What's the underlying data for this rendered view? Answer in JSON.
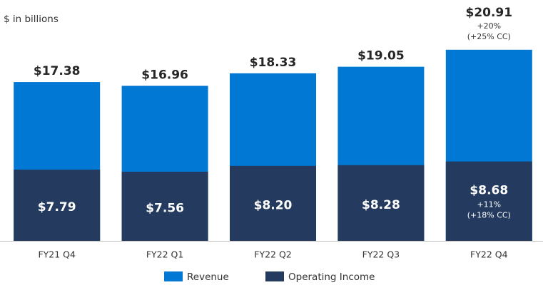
{
  "chart_data": {
    "type": "bar",
    "subtitle": "$ in billions",
    "categories": [
      "FY21 Q4",
      "FY22 Q1",
      "FY22 Q2",
      "FY22 Q3",
      "FY22 Q4"
    ],
    "series": [
      {
        "name": "Revenue",
        "color": "#0078d4",
        "values": [
          17.38,
          16.96,
          18.33,
          19.05,
          20.91
        ],
        "value_labels": [
          "$17.38",
          "$16.96",
          "$18.33",
          "$19.05",
          "$20.91"
        ],
        "notes": [
          null,
          null,
          null,
          null,
          [
            "+20%",
            "(+25% CC)"
          ]
        ]
      },
      {
        "name": "Operating Income",
        "color": "#243a5e",
        "values": [
          7.79,
          7.56,
          8.2,
          8.28,
          8.68
        ],
        "value_labels": [
          "$7.79",
          "$7.56",
          "$8.20",
          "$8.28",
          "$8.68"
        ],
        "notes": [
          null,
          null,
          null,
          null,
          [
            "+11%",
            "(+18% CC)"
          ]
        ]
      }
    ],
    "ylim": [
      0,
      23
    ]
  }
}
